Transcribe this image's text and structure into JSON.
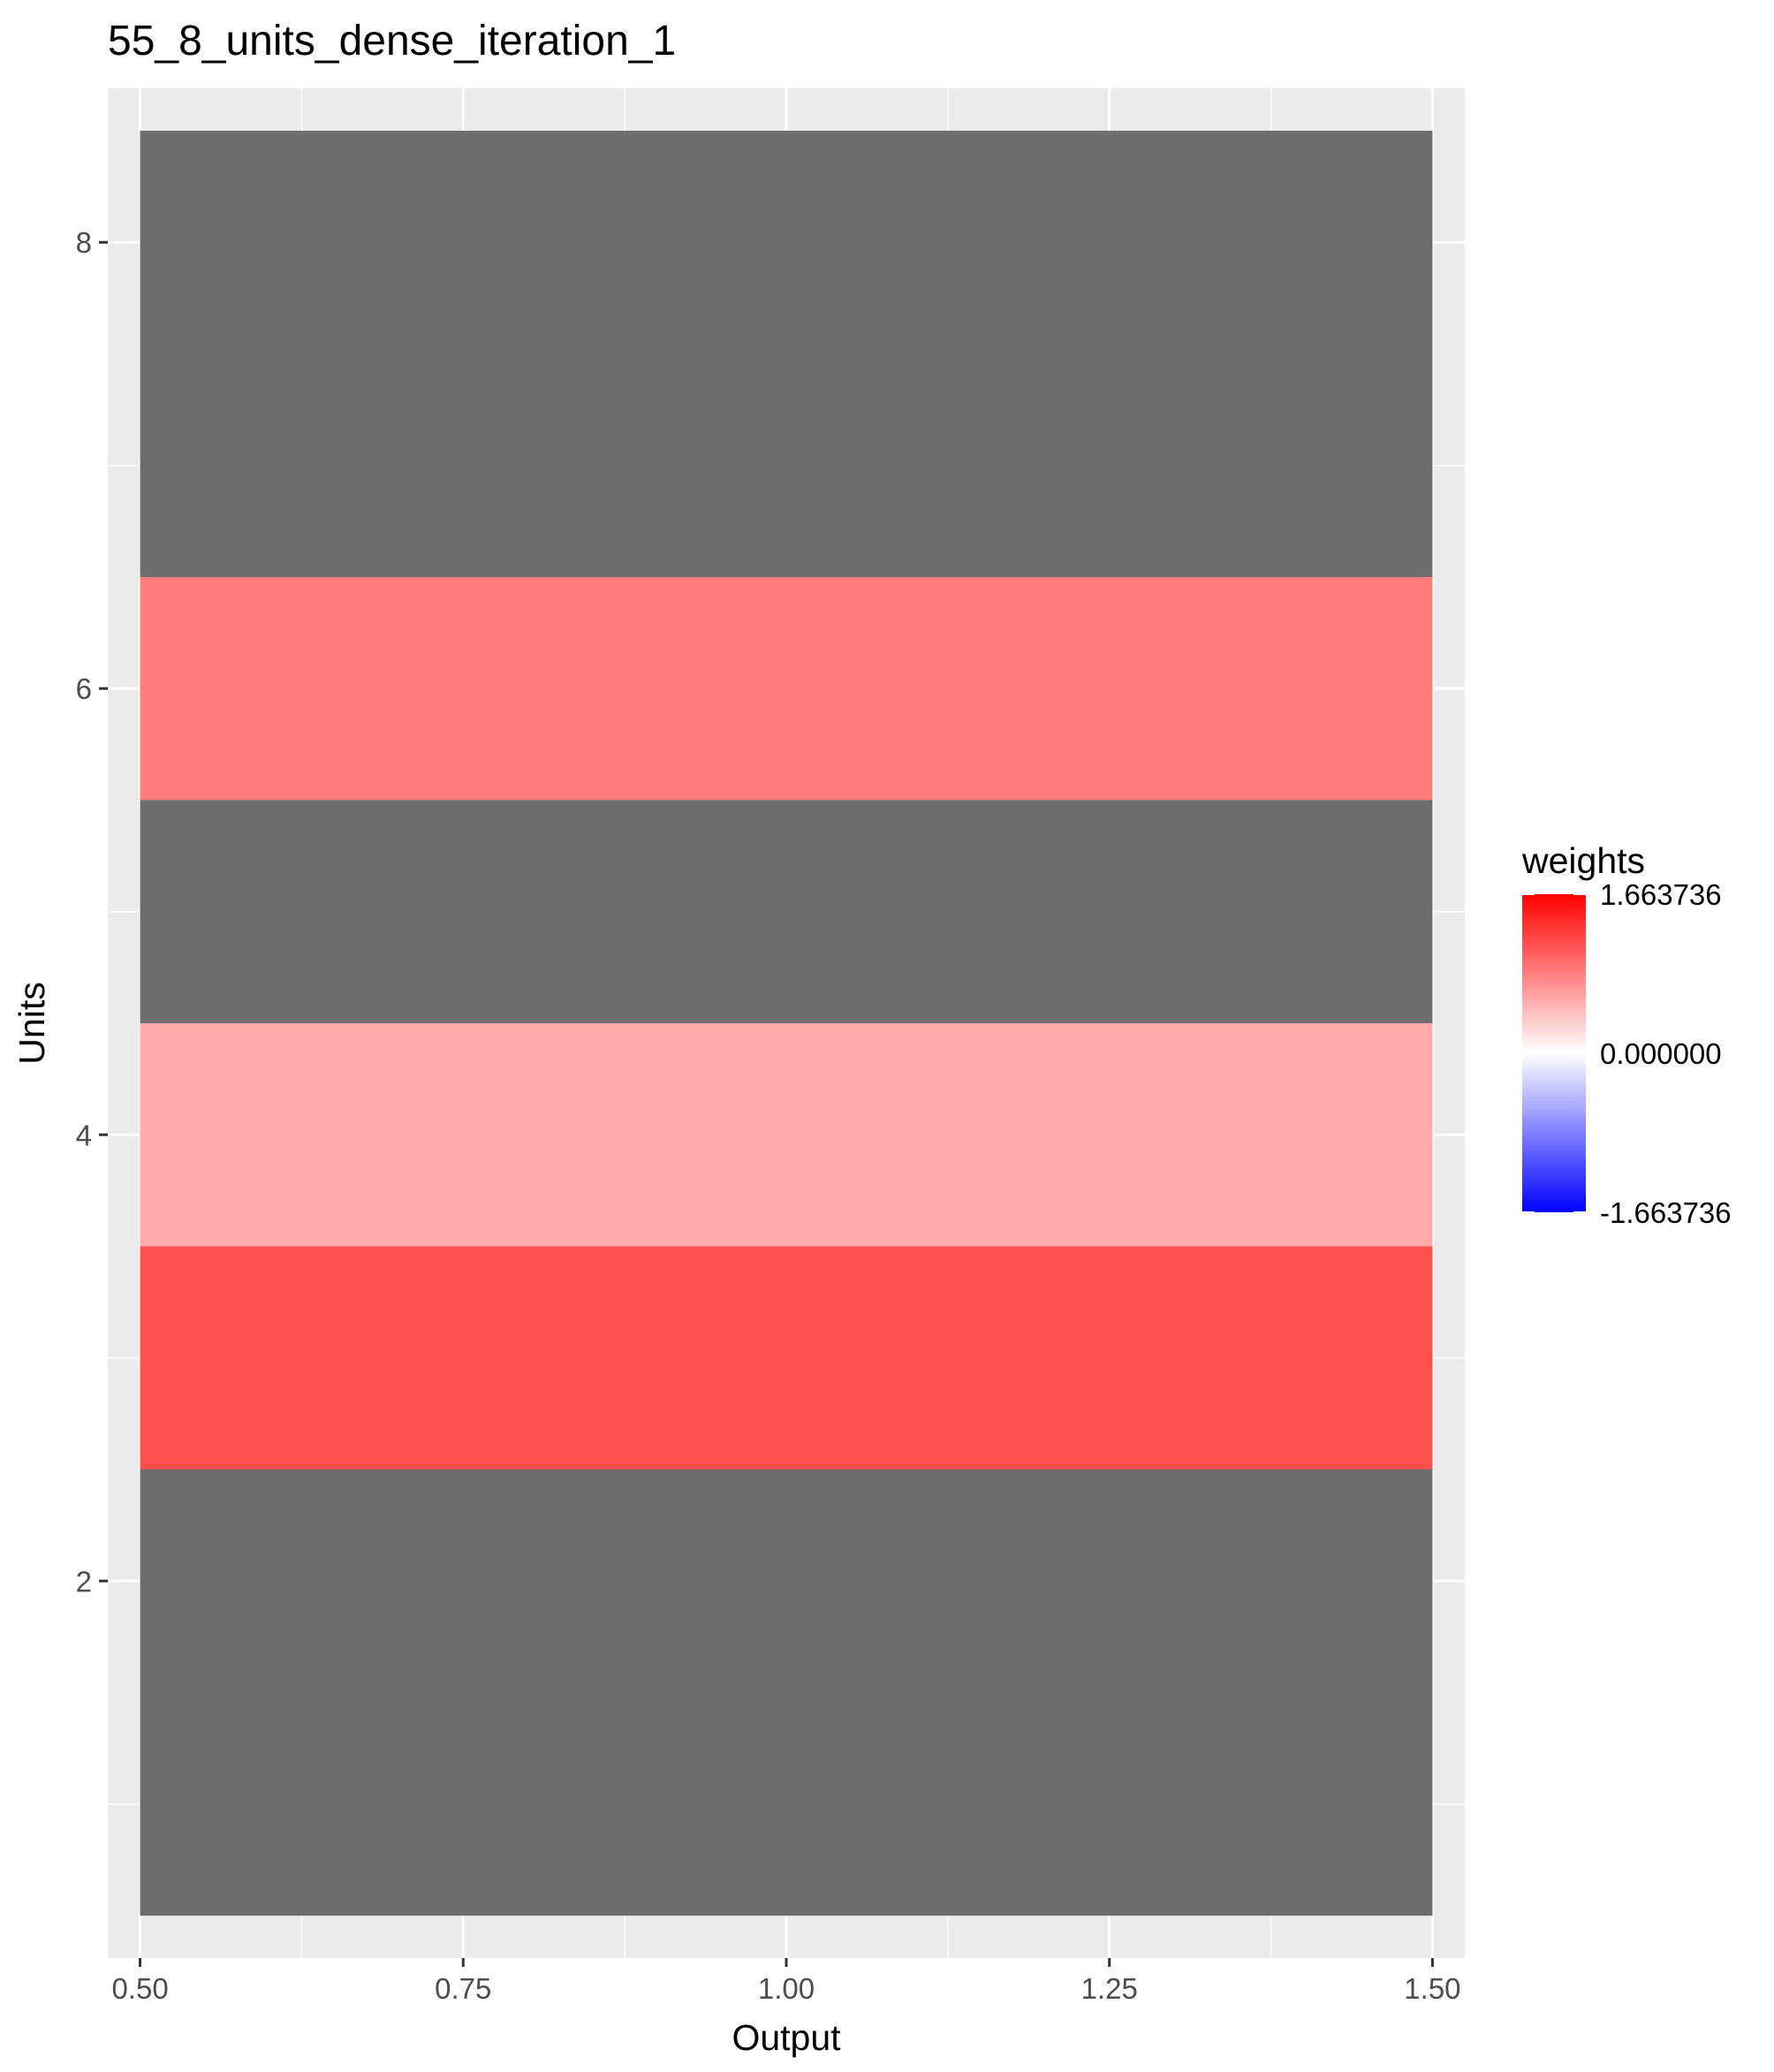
{
  "chart_data": {
    "type": "heatmap",
    "title": "55_8_units_dense_iteration_1",
    "xlabel": "Output",
    "ylabel": "Units",
    "x_ticks": [
      "0.50",
      "0.75",
      "1.00",
      "1.25",
      "1.50"
    ],
    "x_tick_values": [
      0.5,
      0.75,
      1.0,
      1.25,
      1.5
    ],
    "y_ticks": [
      "2",
      "4",
      "6",
      "8"
    ],
    "y_tick_values": [
      2,
      4,
      6,
      8
    ],
    "xlim": [
      0.475,
      1.525
    ],
    "ylim": [
      0.31,
      8.69
    ],
    "grid": true,
    "na_color": "#6e6e6e",
    "x": 1,
    "tiles": [
      {
        "unit": 1,
        "weight": null
      },
      {
        "unit": 2,
        "weight": null
      },
      {
        "unit": 3,
        "weight": 1.15
      },
      {
        "unit": 4,
        "weight": 0.55
      },
      {
        "unit": 5,
        "weight": null
      },
      {
        "unit": 6,
        "weight": 0.85
      },
      {
        "unit": 7,
        "weight": null
      },
      {
        "unit": 8,
        "weight": null
      }
    ],
    "legend": {
      "title": "weights",
      "position": "right",
      "limits": [
        -1.663736,
        1.663736
      ],
      "labels": [
        "1.663736",
        "0.000000",
        "-1.663736"
      ],
      "label_values": [
        1.663736,
        0.0,
        -1.663736
      ],
      "low_color": "#0000ff",
      "mid_color": "#ffffff",
      "high_color": "#ff0000"
    }
  }
}
